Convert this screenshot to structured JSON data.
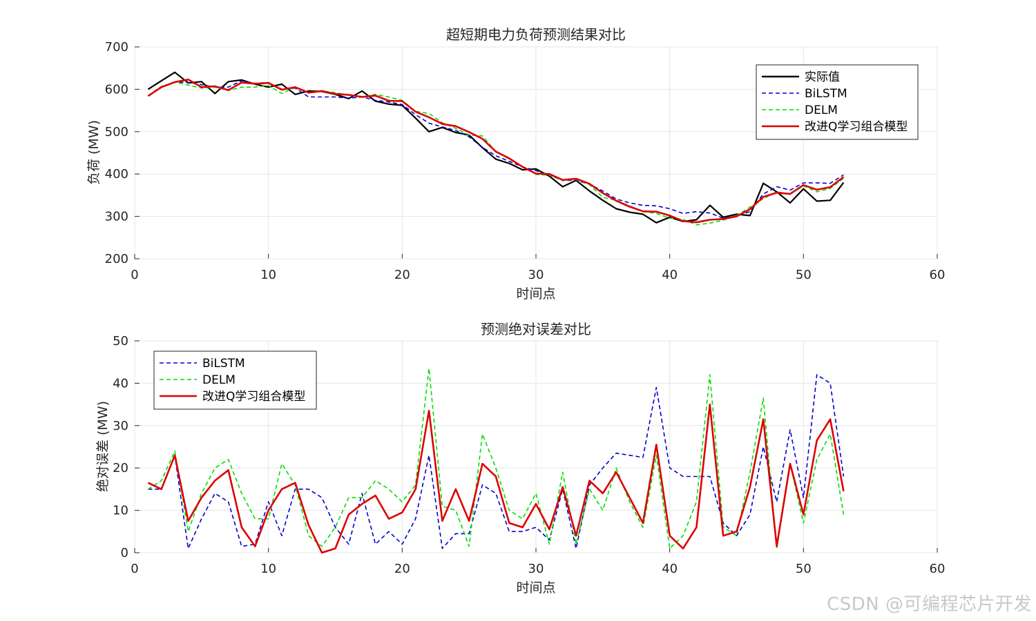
{
  "watermark": "CSDN @可编程芯片开发",
  "chart_data": [
    {
      "type": "line",
      "title": "超短期电力负荷预测结果对比",
      "xlabel": "时间点",
      "ylabel": "负荷 (MW)",
      "xlim": [
        0,
        60
      ],
      "ylim": [
        200,
        700
      ],
      "xticks": [
        0,
        10,
        20,
        30,
        40,
        50,
        60
      ],
      "yticks": [
        200,
        300,
        400,
        500,
        600,
        700
      ],
      "grid": true,
      "legend_position": "top-right",
      "x": [
        1,
        2,
        3,
        4,
        5,
        6,
        7,
        8,
        9,
        10,
        11,
        12,
        13,
        14,
        15,
        16,
        17,
        18,
        19,
        20,
        21,
        22,
        23,
        24,
        25,
        26,
        27,
        28,
        29,
        30,
        31,
        32,
        33,
        34,
        35,
        36,
        37,
        38,
        39,
        40,
        41,
        42,
        43,
        44,
        45,
        46,
        47,
        48,
        49,
        50,
        51,
        52,
        53
      ],
      "series": [
        {
          "name": "实际值",
          "color": "#000000",
          "style": "solid",
          "values": [
            600,
            620,
            640,
            615,
            618,
            590,
            618,
            622,
            612,
            605,
            612,
            588,
            596,
            595,
            588,
            578,
            596,
            572,
            565,
            562,
            532,
            500,
            510,
            498,
            492,
            462,
            435,
            425,
            410,
            412,
            395,
            370,
            385,
            360,
            338,
            318,
            310,
            305,
            285,
            298,
            288,
            292,
            326,
            298,
            305,
            302,
            378,
            358,
            332,
            365,
            336,
            338,
            380
          ]
        },
        {
          "name": "BiLSTM",
          "color": "#0000cc",
          "style": "dashed",
          "values": [
            585,
            605,
            617,
            616,
            611,
            605,
            605,
            620,
            614,
            616,
            600,
            603,
            582,
            582,
            582,
            579,
            582,
            574,
            570,
            564,
            540,
            520,
            511,
            503,
            488,
            463,
            443,
            430,
            417,
            408,
            397,
            385,
            385,
            376,
            360,
            341,
            332,
            326,
            325,
            318,
            307,
            311,
            308,
            296,
            301,
            311,
            353,
            370,
            362,
            379,
            379,
            378,
            398
          ]
        },
        {
          "name": "DELM",
          "color": "#00dd00",
          "style": "dashed",
          "values": [
            585,
            607,
            617,
            610,
            603,
            605,
            597,
            605,
            605,
            609,
            590,
            605,
            592,
            596,
            592,
            586,
            582,
            588,
            582,
            574,
            548,
            543,
            521,
            508,
            492,
            490,
            453,
            435,
            418,
            399,
            397,
            385,
            387,
            375,
            345,
            338,
            325,
            311,
            307,
            296,
            293,
            280,
            284,
            291,
            302,
            322,
            342,
            358,
            353,
            372,
            358,
            366,
            390
          ]
        },
        {
          "name": "改进Q学习组合模型",
          "color": "#dd0000",
          "style": "solid",
          "values": [
            584,
            605,
            617,
            623,
            605,
            607,
            598,
            616,
            613,
            615,
            599,
            605,
            592,
            596,
            589,
            587,
            582,
            585,
            573,
            572,
            547,
            534,
            518,
            513,
            499,
            483,
            453,
            437,
            417,
            401,
            400,
            386,
            389,
            377,
            355,
            337,
            323,
            312,
            311,
            302,
            289,
            286,
            292,
            294,
            300,
            317,
            346,
            356,
            353,
            374,
            363,
            369,
            393
          ]
        }
      ]
    },
    {
      "type": "line",
      "title": "预测绝对误差对比",
      "xlabel": "时间点",
      "ylabel": "绝对误差 (MW)",
      "xlim": [
        0,
        60
      ],
      "ylim": [
        0,
        50
      ],
      "xticks": [
        0,
        10,
        20,
        30,
        40,
        50,
        60
      ],
      "yticks": [
        0,
        10,
        20,
        30,
        40,
        50
      ],
      "grid": true,
      "legend_position": "top-left",
      "x": [
        1,
        2,
        3,
        4,
        5,
        6,
        7,
        8,
        9,
        10,
        11,
        12,
        13,
        14,
        15,
        16,
        17,
        18,
        19,
        20,
        21,
        22,
        23,
        24,
        25,
        26,
        27,
        28,
        29,
        30,
        31,
        32,
        33,
        34,
        35,
        36,
        37,
        38,
        39,
        40,
        41,
        42,
        43,
        44,
        45,
        46,
        47,
        48,
        49,
        50,
        51,
        52,
        53
      ],
      "series": [
        {
          "name": "BiLSTM",
          "color": "#0000cc",
          "style": "dashed",
          "values": [
            15,
            15,
            23,
            1,
            8,
            14,
            12,
            1.5,
            2,
            12,
            4,
            15,
            15,
            13,
            6,
            2,
            14,
            2,
            5,
            2,
            8,
            23,
            1,
            4.5,
            4.5,
            16,
            14,
            5,
            5,
            6,
            3,
            15,
            1,
            16,
            20,
            23.5,
            23,
            22.5,
            39,
            20,
            18,
            18,
            18,
            7,
            4,
            9,
            25,
            12,
            29,
            13,
            42,
            40,
            18
          ]
        },
        {
          "name": "DELM",
          "color": "#00dd00",
          "style": "dashed",
          "values": [
            15,
            17,
            24,
            5,
            14,
            20,
            22,
            14,
            8,
            8,
            21,
            16,
            4,
            1.5,
            6,
            13,
            13,
            17,
            15,
            12,
            16,
            43.5,
            11,
            10,
            1.5,
            28,
            20,
            10,
            8,
            14,
            2,
            19,
            2,
            15,
            10,
            20,
            12,
            6,
            23,
            1,
            4,
            12,
            42,
            6,
            4,
            19,
            36.5,
            1,
            21,
            7,
            22,
            28,
            9
          ]
        },
        {
          "name": "改进Q学习组合模型",
          "color": "#dd0000",
          "style": "solid",
          "values": [
            16.5,
            15,
            23,
            7.5,
            13,
            17,
            19.5,
            6,
            1.5,
            10,
            15,
            16.5,
            6.5,
            0,
            1,
            9,
            11.5,
            13.5,
            8,
            9.5,
            15,
            33.5,
            7.5,
            15,
            7.5,
            21,
            18,
            7,
            6,
            11.5,
            5.5,
            15.5,
            4,
            17,
            14,
            19,
            13,
            7,
            25.5,
            4,
            1,
            6,
            35,
            4,
            5,
            15.5,
            31.5,
            1.5,
            21,
            9,
            26.5,
            31.5,
            14.5
          ]
        }
      ]
    }
  ]
}
